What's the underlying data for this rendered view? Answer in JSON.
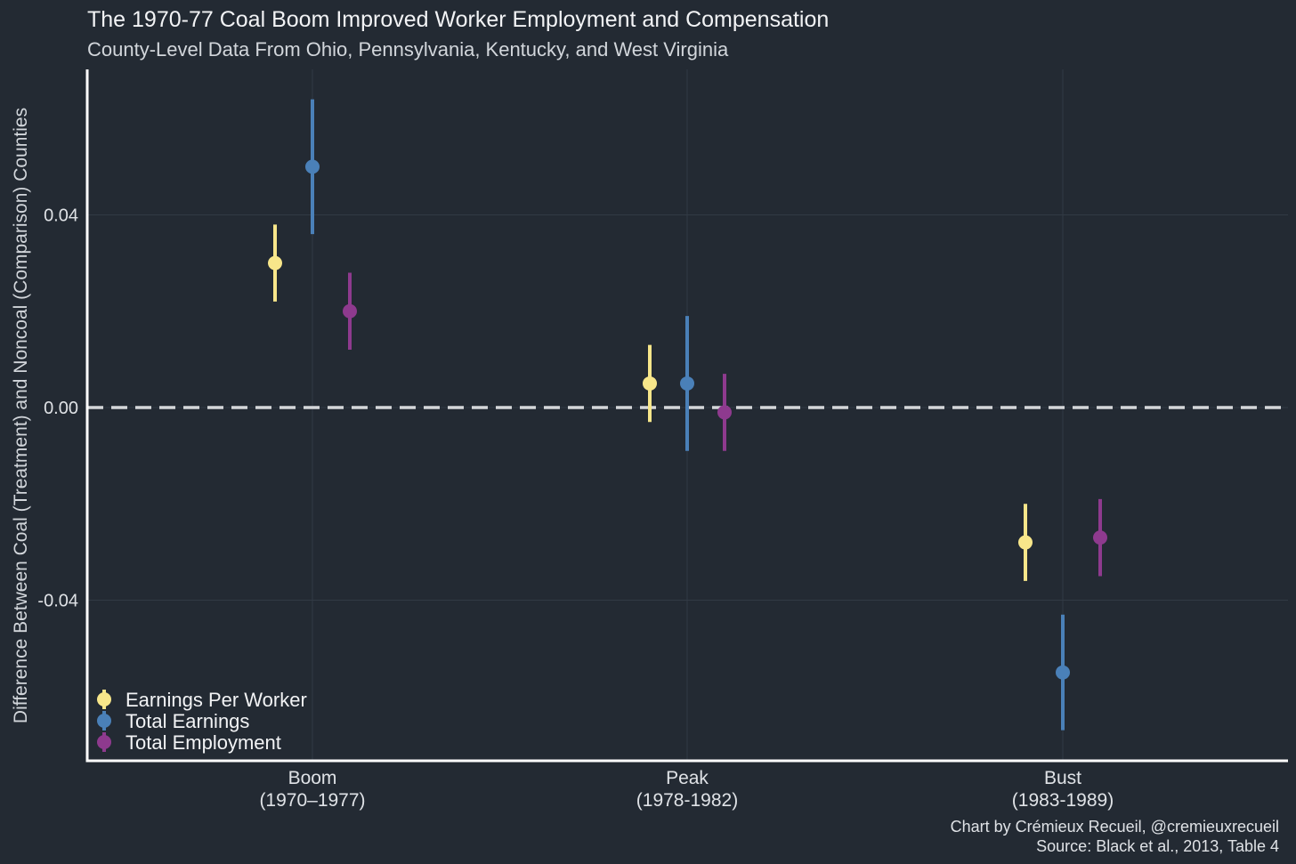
{
  "chart_data": {
    "type": "scatter",
    "title": "The 1970-77 Coal Boom Improved Worker Employment and Compensation",
    "subtitle": "County-Level Data From Ohio, Pennsylvania, Kentucky, and West Virginia",
    "xlabel": "",
    "ylabel": "Difference Between Coal (Treatment) and Noncoal (Comparison) Counties",
    "ylim": [
      -0.073,
      0.068
    ],
    "yticks": [
      -0.04,
      0.0,
      0.04
    ],
    "ytick_labels": [
      "-0.04",
      "0.00",
      "0.04"
    ],
    "categories": [
      {
        "line1": "Boom",
        "line2": "(1970–1977)"
      },
      {
        "line1": "Peak",
        "line2": "(1978-1982)"
      },
      {
        "line1": "Bust",
        "line2": "(1983-1989)"
      }
    ],
    "series": [
      {
        "name": "Earnings Per Worker",
        "color": "#f7e68a",
        "values": [
          0.03,
          0.005,
          -0.028
        ],
        "lower": [
          0.022,
          -0.003,
          -0.036
        ],
        "upper": [
          0.038,
          0.013,
          -0.02
        ]
      },
      {
        "name": "Total Earnings",
        "color": "#4a80b8",
        "values": [
          0.05,
          0.005,
          -0.055
        ],
        "lower": [
          0.036,
          -0.009,
          -0.067
        ],
        "upper": [
          0.064,
          0.019,
          -0.043
        ]
      },
      {
        "name": "Total Employment",
        "color": "#8e3a8e",
        "values": [
          0.02,
          -0.001,
          -0.027
        ],
        "lower": [
          0.012,
          -0.009,
          -0.035
        ],
        "upper": [
          0.028,
          0.007,
          -0.019
        ]
      }
    ],
    "reference_line": 0.0,
    "grid": true,
    "legend_position": "bottom-left"
  },
  "caption": {
    "line1": "Chart by Crémieux Recueil, @cremieuxrecueil",
    "line2": "Source: Black et al., 2013, Table 4"
  },
  "colors": {
    "background": "#232a33",
    "gridline": "#323a44",
    "axis": "#ffffff",
    "zero_line": "#d4d6d9"
  }
}
